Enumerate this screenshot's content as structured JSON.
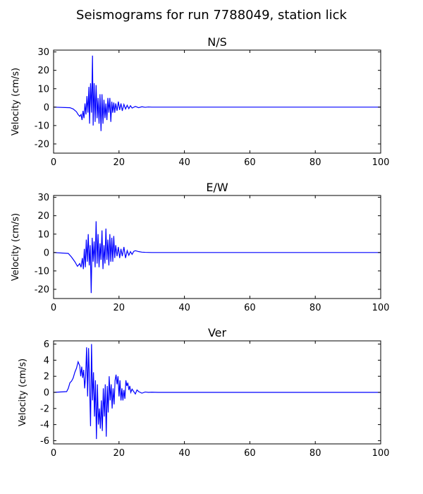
{
  "figure": {
    "title": "Seismograms for run 7788049, station lick"
  },
  "chart_data": [
    {
      "type": "line",
      "title": "N/S",
      "xlabel": "",
      "ylabel": "Velocity (cm/s)",
      "xlim": [
        0,
        100
      ],
      "ylim": [
        -25,
        31
      ],
      "xticks": [
        0,
        20,
        40,
        60,
        80,
        100
      ],
      "yticks": [
        -20,
        -10,
        0,
        10,
        20,
        30
      ],
      "grid": false,
      "color": "#0000ff",
      "series": [
        {
          "x": [
            0,
            5,
            6,
            7,
            7.5,
            8,
            8.4,
            8.7,
            9.0,
            9.3,
            9.6,
            9.9,
            10.2,
            10.5,
            10.8,
            11.0,
            11.3,
            11.6,
            11.9,
            12.1,
            12.4,
            12.7,
            13.0,
            13.3,
            13.6,
            13.9,
            14.2,
            14.5,
            14.8,
            15.1,
            15.4,
            15.7,
            16.0,
            16.3,
            16.6,
            16.9,
            17.2,
            17.5,
            17.8,
            18.1,
            18.4,
            18.7,
            19.0,
            19.4,
            19.8,
            20.2,
            20.6,
            21.0,
            21.5,
            22.0,
            22.5,
            23.0,
            23.5,
            24.0,
            25,
            26,
            27,
            28,
            29,
            30,
            32,
            100
          ],
          "y": [
            0,
            -0.3,
            -1.0,
            -2.5,
            -4.0,
            -5.0,
            -4.0,
            -7.0,
            -2.0,
            -6.0,
            2.0,
            -4.0,
            6.0,
            -3.0,
            11.0,
            -9.0,
            13.0,
            -3.0,
            28.0,
            -10.0,
            13.0,
            -8.0,
            12.0,
            -6.0,
            5.0,
            -9.0,
            7.0,
            -13.0,
            7.0,
            -9.0,
            4.0,
            -6.0,
            2.0,
            -7.0,
            5.0,
            -3.0,
            5.0,
            -8.0,
            3.0,
            -3.0,
            2.5,
            -3.0,
            2.0,
            -2.0,
            3.0,
            -1.5,
            2.0,
            -2.0,
            1.5,
            -1.0,
            1.0,
            -0.8,
            0.8,
            -0.5,
            0.4,
            -0.3,
            0.2,
            -0.1,
            0.1,
            0,
            0,
            0
          ]
        }
      ]
    },
    {
      "type": "line",
      "title": "E/W",
      "xlabel": "",
      "ylabel": "Velocity (cm/s)",
      "xlim": [
        0,
        100
      ],
      "ylim": [
        -25,
        31
      ],
      "xticks": [
        0,
        20,
        40,
        60,
        80,
        100
      ],
      "yticks": [
        -20,
        -10,
        0,
        10,
        20,
        30
      ],
      "grid": false,
      "color": "#0000ff",
      "series": [
        {
          "x": [
            0,
            4.5,
            5.5,
            6.5,
            7.3,
            8.0,
            8.4,
            8.8,
            9.1,
            9.4,
            9.7,
            10.0,
            10.3,
            10.6,
            10.9,
            11.2,
            11.5,
            11.8,
            12.1,
            12.4,
            12.7,
            13.0,
            13.3,
            13.6,
            13.9,
            14.2,
            14.5,
            14.8,
            15.1,
            15.4,
            15.7,
            16.0,
            16.3,
            16.6,
            16.9,
            17.2,
            17.5,
            17.8,
            18.1,
            18.4,
            18.7,
            19.0,
            19.4,
            19.8,
            20.2,
            20.6,
            21.0,
            21.5,
            22.0,
            22.5,
            23.0,
            23.5,
            24.0,
            24.5,
            25,
            26,
            27,
            28,
            30,
            100
          ],
          "y": [
            0,
            -0.5,
            -2.5,
            -5.0,
            -7.5,
            -6.0,
            -8.0,
            -3.0,
            -9.0,
            2.0,
            -8.0,
            7.0,
            -5.0,
            10.0,
            -7.0,
            4.0,
            -22.0,
            8.0,
            -5.0,
            6.0,
            -8.0,
            17.0,
            -6.0,
            10.0,
            -8.0,
            5.0,
            -4.0,
            12.0,
            -9.0,
            4.0,
            -6.0,
            13.0,
            -4.0,
            7.0,
            -7.0,
            10.0,
            -5.0,
            8.0,
            -5.0,
            9.0,
            -3.0,
            4.0,
            -2.0,
            3.0,
            -3.0,
            2.0,
            -2.0,
            3.0,
            -3.0,
            1.0,
            -1.5,
            0.5,
            -1.0,
            0.6,
            1.0,
            0.5,
            0.2,
            0.1,
            0,
            0
          ]
        }
      ]
    },
    {
      "type": "line",
      "title": "Ver",
      "xlabel": "",
      "ylabel": "Velocity (cm/s)",
      "xlim": [
        0,
        100
      ],
      "ylim": [
        -6.4,
        6.4
      ],
      "xticks": [
        0,
        20,
        40,
        60,
        80,
        100
      ],
      "yticks": [
        -6,
        -4,
        -2,
        0,
        2,
        4,
        6
      ],
      "grid": false,
      "color": "#0000ff",
      "series": [
        {
          "x": [
            0,
            4.0,
            4.5,
            5.0,
            5.5,
            6.0,
            6.5,
            7.0,
            7.5,
            8.0,
            8.3,
            8.6,
            8.9,
            9.2,
            9.5,
            9.8,
            10.1,
            10.4,
            10.7,
            11.0,
            11.3,
            11.6,
            11.9,
            12.2,
            12.5,
            12.8,
            13.1,
            13.4,
            13.7,
            14.0,
            14.3,
            14.6,
            14.9,
            15.2,
            15.5,
            15.8,
            16.1,
            16.4,
            16.7,
            17.0,
            17.3,
            17.6,
            17.9,
            18.2,
            18.5,
            18.8,
            19.1,
            19.4,
            19.7,
            20.0,
            20.3,
            20.6,
            20.9,
            21.2,
            21.5,
            21.8,
            22.1,
            22.4,
            22.7,
            23.0,
            23.3,
            23.6,
            24.0,
            24.5,
            25.0,
            25.5,
            26.0,
            27,
            28,
            29,
            30,
            32,
            35,
            100
          ],
          "y": [
            0,
            0.1,
            0.5,
            1.2,
            1.4,
            1.8,
            2.5,
            3.0,
            3.8,
            3.3,
            2.0,
            3.2,
            1.8,
            2.8,
            0.5,
            2.0,
            5.6,
            -0.5,
            5.5,
            1.0,
            -4.2,
            6.0,
            -1.0,
            2.5,
            -3.0,
            1.5,
            -5.8,
            1.0,
            -4.0,
            -2.0,
            -4.5,
            -1.0,
            -4.8,
            0.5,
            -3.0,
            1.0,
            -5.5,
            0.8,
            -2.5,
            2.0,
            -1.0,
            1.0,
            -2.0,
            0.5,
            -1.5,
            1.5,
            2.2,
            1.0,
            2.0,
            -0.5,
            1.5,
            -1.0,
            0.5,
            -1.0,
            0.3,
            -0.8,
            1.5,
            0.8,
            1.2,
            0.3,
            0.8,
            0.0,
            0.4,
            0.1,
            -0.2,
            0.3,
            0.1,
            -0.1,
            0.05,
            0,
            0.02,
            0,
            0,
            0
          ]
        }
      ]
    }
  ]
}
